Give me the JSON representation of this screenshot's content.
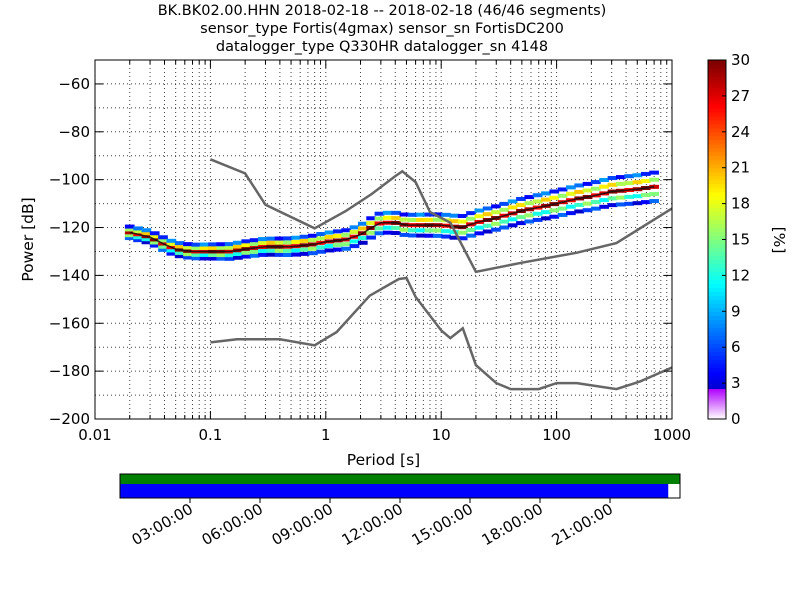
{
  "title": {
    "line1": "BK.BK02.00.HHN   2018-02-18 -- 2018-02-18  (46/46 segments)",
    "line2": "sensor_type Fortis(4gmax) sensor_sn FortisDC200",
    "line3": "datalogger_type Q330HR datalogger_sn 4148"
  },
  "chart_data": [
    {
      "type": "heatmap",
      "xlabel": "Period [s]",
      "ylabel": "Power [dB]",
      "xscale": "log",
      "xlim": [
        0.01,
        1000
      ],
      "ylim": [
        -200,
        -50
      ],
      "x_tick_labels": [
        "0.01",
        "0.1",
        "1",
        "10",
        "100",
        "1000"
      ],
      "y_tick_labels": [
        "−200",
        "−180",
        "−160",
        "−140",
        "−120",
        "−100",
        "−80",
        "−60"
      ],
      "grid": true,
      "colorbar": {
        "label": "[%]",
        "min": 0,
        "max": 30,
        "tick_labels": [
          "0",
          "3",
          "6",
          "9",
          "12",
          "15",
          "18",
          "21",
          "24",
          "27",
          "30"
        ]
      },
      "psd_trace": {
        "period": [
          0.02,
          0.03,
          0.04,
          0.05,
          0.07,
          0.1,
          0.15,
          0.2,
          0.3,
          0.5,
          0.8,
          1.0,
          1.5,
          2.0,
          2.5,
          3.0,
          4.0,
          5.0,
          7.0,
          10.0,
          15.0,
          20.0,
          30.0,
          50.0,
          80.0,
          100.0,
          150.0,
          200.0,
          300.0,
          500.0,
          700.0
        ],
        "power_db": [
          -122,
          -124,
          -127,
          -129,
          -130,
          -130,
          -130,
          -129,
          -128,
          -128,
          -127,
          -126,
          -125,
          -123,
          -120,
          -118,
          -118,
          -119,
          -119,
          -119,
          -120,
          -118,
          -116,
          -113,
          -111,
          -110,
          -108,
          -107,
          -105,
          -104,
          -103
        ]
      },
      "reference_curves": [
        {
          "period": [
            0.1,
            0.2,
            0.3,
            0.8,
            1.5,
            2.5,
            4.0,
            4.6,
            6.0,
            8.0,
            12.0,
            20.0,
            50.0,
            150.0,
            330.0,
            1000.0
          ],
          "power_db": [
            -91.5,
            -97.4,
            -110.5,
            -120.3,
            -113.0,
            -106.0,
            -98.5,
            -96.5,
            -101.0,
            -113.5,
            -118.0,
            -138.5,
            -134.7,
            -130.5,
            -126.5,
            -112.0
          ]
        },
        {
          "period": [
            0.1,
            0.17,
            0.4,
            0.8,
            1.24,
            2.4,
            4.3,
            5.0,
            6.0,
            10.0,
            12.0,
            15.4,
            20.0,
            30.0,
            40.0,
            70.0,
            100.0,
            150.0,
            330.0,
            530.0,
            1000.0
          ],
          "power_db": [
            -168.0,
            -166.7,
            -166.7,
            -169.2,
            -163.7,
            -148.5,
            -141.5,
            -141.1,
            -149.0,
            -163.0,
            -166.2,
            -162.1,
            -177.5,
            -185.0,
            -187.5,
            -187.5,
            -185.0,
            -185.0,
            -187.5,
            -184.3,
            -178.5
          ]
        }
      ]
    },
    {
      "type": "timeline",
      "x_tick_labels": [
        "03:00:00",
        "06:00:00",
        "09:00:00",
        "12:00:00",
        "15:00:00",
        "18:00:00",
        "21:00:00"
      ],
      "data_coverage_fraction": 0.979,
      "psd_coverage_fraction": 1.0,
      "colors": {
        "data": "#0000ff",
        "psd": "#008000"
      }
    }
  ]
}
